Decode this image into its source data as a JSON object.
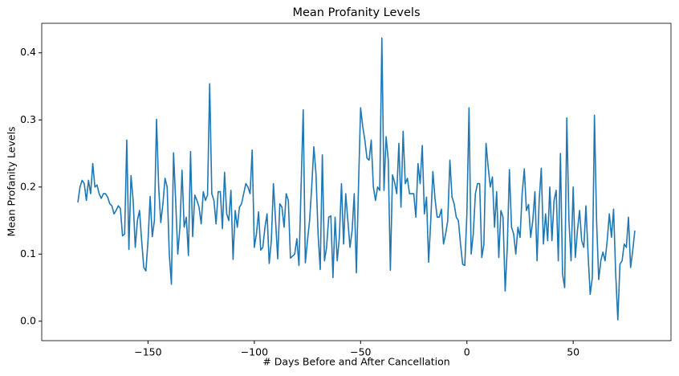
{
  "chart_data": {
    "type": "line",
    "title": "Mean Profanity Levels",
    "xlabel": "# Days Before and After Cancellation",
    "ylabel": "Mean Profanity Levels",
    "color": "#1f77b4",
    "xlim": [
      -200,
      96
    ],
    "ylim": [
      -0.029,
      0.444
    ],
    "xticks": [
      {
        "value": -150,
        "label": "−150"
      },
      {
        "value": -100,
        "label": "−100"
      },
      {
        "value": -50,
        "label": "−50"
      },
      {
        "value": 0,
        "label": "0"
      },
      50
    ],
    "yticks": [
      {
        "value": 0,
        "label": "0.0"
      },
      0.1,
      0.2,
      0.3,
      0.4
    ],
    "x": [
      -183,
      -182,
      -181,
      -180,
      -179,
      -178,
      -177,
      -176,
      -175,
      -174,
      -173,
      -172,
      -171,
      -170,
      -169,
      -168,
      -167,
      -166,
      -165,
      -164,
      -163,
      -162,
      -161,
      -160,
      -159,
      -158,
      -157,
      -156,
      -155,
      -154,
      -153,
      -152,
      -151,
      -150,
      -149,
      -148,
      -147,
      -146,
      -145,
      -144,
      -143,
      -142,
      -141,
      -140,
      -139,
      -138,
      -137,
      -136,
      -135,
      -134,
      -133,
      -132,
      -131,
      -130,
      -129,
      -128,
      -127,
      -126,
      -125,
      -124,
      -123,
      -122,
      -121,
      -120,
      -119,
      -118,
      -117,
      -116,
      -115,
      -114,
      -113,
      -112,
      -111,
      -110,
      -109,
      -108,
      -107,
      -106,
      -105,
      -104,
      -103,
      -102,
      -101,
      -100,
      -99,
      -98,
      -97,
      -96,
      -95,
      -94,
      -93,
      -92,
      -91,
      -90,
      -89,
      -88,
      -87,
      -86,
      -85,
      -84,
      -83,
      -82,
      -81,
      -80,
      -79,
      -78,
      -77,
      -76,
      -75,
      -74,
      -73,
      -72,
      -71,
      -70,
      -69,
      -68,
      -67,
      -66,
      -65,
      -64,
      -63,
      -62,
      -61,
      -60,
      -59,
      -58,
      -57,
      -56,
      -55,
      -54,
      -53,
      -52,
      -51,
      -50,
      -49,
      -48,
      -47,
      -46,
      -45,
      -44,
      -43,
      -42,
      -41,
      -40,
      -39,
      -38,
      -37,
      -36,
      -35,
      -34,
      -33,
      -32,
      -31,
      -30,
      -29,
      -28,
      -27,
      -26,
      -25,
      -24,
      -23,
      -22,
      -21,
      -20,
      -19,
      -18,
      -17,
      -16,
      -15,
      -14,
      -13,
      -12,
      -11,
      -10,
      -9,
      -8,
      -7,
      -6,
      -5,
      -4,
      -3,
      -2,
      -1,
      0,
      1,
      2,
      3,
      4,
      5,
      6,
      7,
      8,
      9,
      10,
      11,
      12,
      13,
      14,
      15,
      16,
      17,
      18,
      19,
      20,
      21,
      22,
      23,
      24,
      25,
      26,
      27,
      28,
      29,
      30,
      31,
      32,
      33,
      34,
      35,
      36,
      37,
      38,
      39,
      40,
      41,
      42,
      43,
      44,
      45,
      46,
      47,
      48,
      49,
      50,
      51,
      52,
      53,
      54,
      55,
      56,
      57,
      58,
      59,
      60,
      61,
      62,
      63,
      64,
      65,
      66,
      67,
      68,
      69,
      70,
      71,
      72,
      73,
      74,
      75,
      76,
      77,
      78,
      79
    ],
    "values": [
      0.177,
      0.2,
      0.21,
      0.205,
      0.18,
      0.21,
      0.19,
      0.235,
      0.2,
      0.203,
      0.19,
      0.183,
      0.19,
      0.19,
      0.185,
      0.175,
      0.172,
      0.16,
      0.165,
      0.172,
      0.168,
      0.127,
      0.13,
      0.27,
      0.107,
      0.217,
      0.18,
      0.11,
      0.15,
      0.165,
      0.12,
      0.08,
      0.075,
      0.12,
      0.186,
      0.126,
      0.15,
      0.301,
      0.2,
      0.147,
      0.175,
      0.213,
      0.2,
      0.1,
      0.055,
      0.251,
      0.18,
      0.1,
      0.14,
      0.225,
      0.14,
      0.155,
      0.098,
      0.253,
      0.126,
      0.188,
      0.18,
      0.17,
      0.145,
      0.193,
      0.18,
      0.188,
      0.354,
      0.19,
      0.18,
      0.145,
      0.193,
      0.193,
      0.138,
      0.222,
      0.16,
      0.15,
      0.195,
      0.092,
      0.165,
      0.14,
      0.17,
      0.175,
      0.19,
      0.205,
      0.2,
      0.19,
      0.255,
      0.11,
      0.13,
      0.163,
      0.106,
      0.11,
      0.14,
      0.16,
      0.086,
      0.12,
      0.205,
      0.15,
      0.093,
      0.175,
      0.17,
      0.14,
      0.19,
      0.18,
      0.094,
      0.097,
      0.1,
      0.123,
      0.083,
      0.2,
      0.315,
      0.087,
      0.12,
      0.15,
      0.2,
      0.26,
      0.22,
      0.13,
      0.077,
      0.248,
      0.09,
      0.11,
      0.155,
      0.157,
      0.065,
      0.155,
      0.09,
      0.125,
      0.205,
      0.115,
      0.19,
      0.15,
      0.11,
      0.135,
      0.19,
      0.072,
      0.2,
      0.318,
      0.29,
      0.27,
      0.243,
      0.24,
      0.27,
      0.2,
      0.18,
      0.2,
      0.195,
      0.422,
      0.195,
      0.275,
      0.24,
      0.076,
      0.218,
      0.207,
      0.19,
      0.265,
      0.17,
      0.283,
      0.205,
      0.213,
      0.19,
      0.19,
      0.19,
      0.155,
      0.235,
      0.205,
      0.262,
      0.16,
      0.185,
      0.088,
      0.15,
      0.223,
      0.183,
      0.155,
      0.155,
      0.167,
      0.115,
      0.13,
      0.15,
      0.24,
      0.185,
      0.175,
      0.155,
      0.15,
      0.115,
      0.085,
      0.083,
      0.16,
      0.318,
      0.1,
      0.13,
      0.19,
      0.205,
      0.205,
      0.095,
      0.115,
      0.265,
      0.23,
      0.2,
      0.215,
      0.14,
      0.193,
      0.095,
      0.165,
      0.155,
      0.045,
      0.11,
      0.226,
      0.14,
      0.13,
      0.1,
      0.14,
      0.125,
      0.19,
      0.227,
      0.165,
      0.174,
      0.125,
      0.15,
      0.193,
      0.09,
      0.18,
      0.228,
      0.115,
      0.16,
      0.12,
      0.2,
      0.12,
      0.18,
      0.195,
      0.09,
      0.25,
      0.07,
      0.05,
      0.303,
      0.15,
      0.09,
      0.2,
      0.095,
      0.135,
      0.165,
      0.12,
      0.11,
      0.172,
      0.1,
      0.04,
      0.065,
      0.307,
      0.15,
      0.062,
      0.09,
      0.103,
      0.09,
      0.12,
      0.16,
      0.125,
      0.167,
      0.07,
      0.002,
      0.085,
      0.09,
      0.115,
      0.11,
      0.155,
      0.08,
      0.105,
      0.135
    ]
  }
}
